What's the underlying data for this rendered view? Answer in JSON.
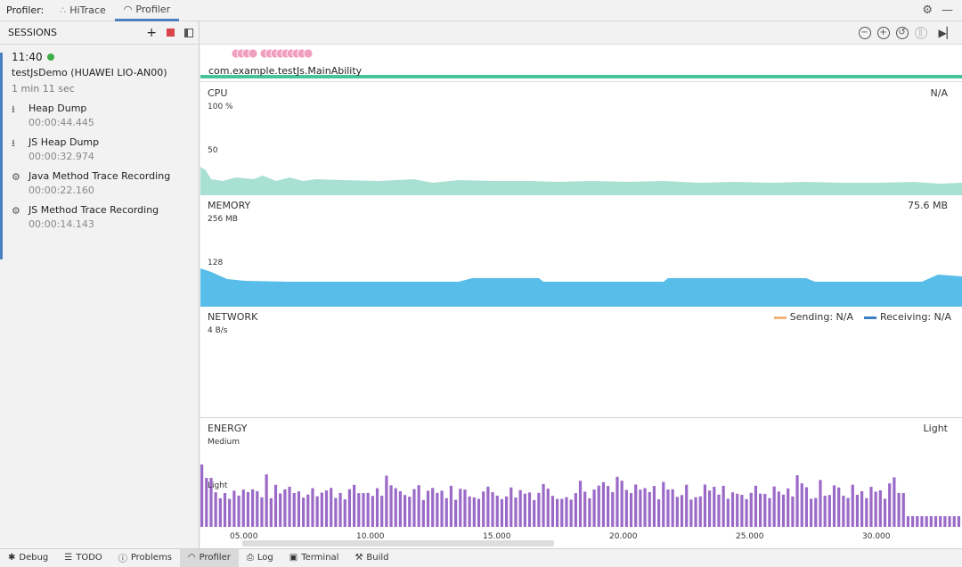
{
  "topbar": {
    "label": "Profiler:",
    "tabs": [
      {
        "label": "HiTrace"
      },
      {
        "label": "Profiler"
      }
    ]
  },
  "sidebar": {
    "header": "SESSIONS",
    "session": {
      "time": "11:40",
      "device": "testJsDemo (HUAWEI LIO-AN00)",
      "duration": "1 min 11 sec",
      "items": [
        {
          "name": "Heap Dump",
          "time": "00:00:44.445",
          "icon": "heap-dump-icon"
        },
        {
          "name": "JS Heap Dump",
          "time": "00:00:32.974",
          "icon": "heap-dump-icon"
        },
        {
          "name": "Java Method Trace Recording",
          "time": "00:00:22.160",
          "icon": "gear-icon"
        },
        {
          "name": "JS Method Trace Recording",
          "time": "00:00:14.143",
          "icon": "gear-icon"
        }
      ]
    }
  },
  "main": {
    "process": "com.example.testJs.MainAbility",
    "cpu": {
      "title": "CPU",
      "value": "N/A",
      "max": "100 %",
      "mid": "50"
    },
    "memory": {
      "title": "MEMORY",
      "value": "75.6 MB",
      "max": "256 MB",
      "mid": "128"
    },
    "network": {
      "title": "NETWORK",
      "max": "4 B/s",
      "sending": "Sending: N/A",
      "receiving": "Receiving: N/A"
    },
    "energy": {
      "title": "ENERGY",
      "value": "Light",
      "max": "Medium",
      "mid": "Light"
    },
    "ticks": [
      "05.000",
      "10.000",
      "15.000",
      "20.000",
      "25.000",
      "30.000"
    ]
  },
  "colors": {
    "cpu": "#a8e0d2",
    "memory": "#58bde9",
    "energy": "#9b6ac8",
    "sending": "#f0b47a",
    "receiving": "#3f7fc4",
    "accent": "#4a7fc0",
    "process": "#48c29a"
  },
  "bottombar": {
    "items": [
      {
        "label": "Debug"
      },
      {
        "label": "TODO"
      },
      {
        "label": "Problems"
      },
      {
        "label": "Profiler"
      },
      {
        "label": "Log"
      },
      {
        "label": "Terminal"
      },
      {
        "label": "Build"
      }
    ]
  }
}
